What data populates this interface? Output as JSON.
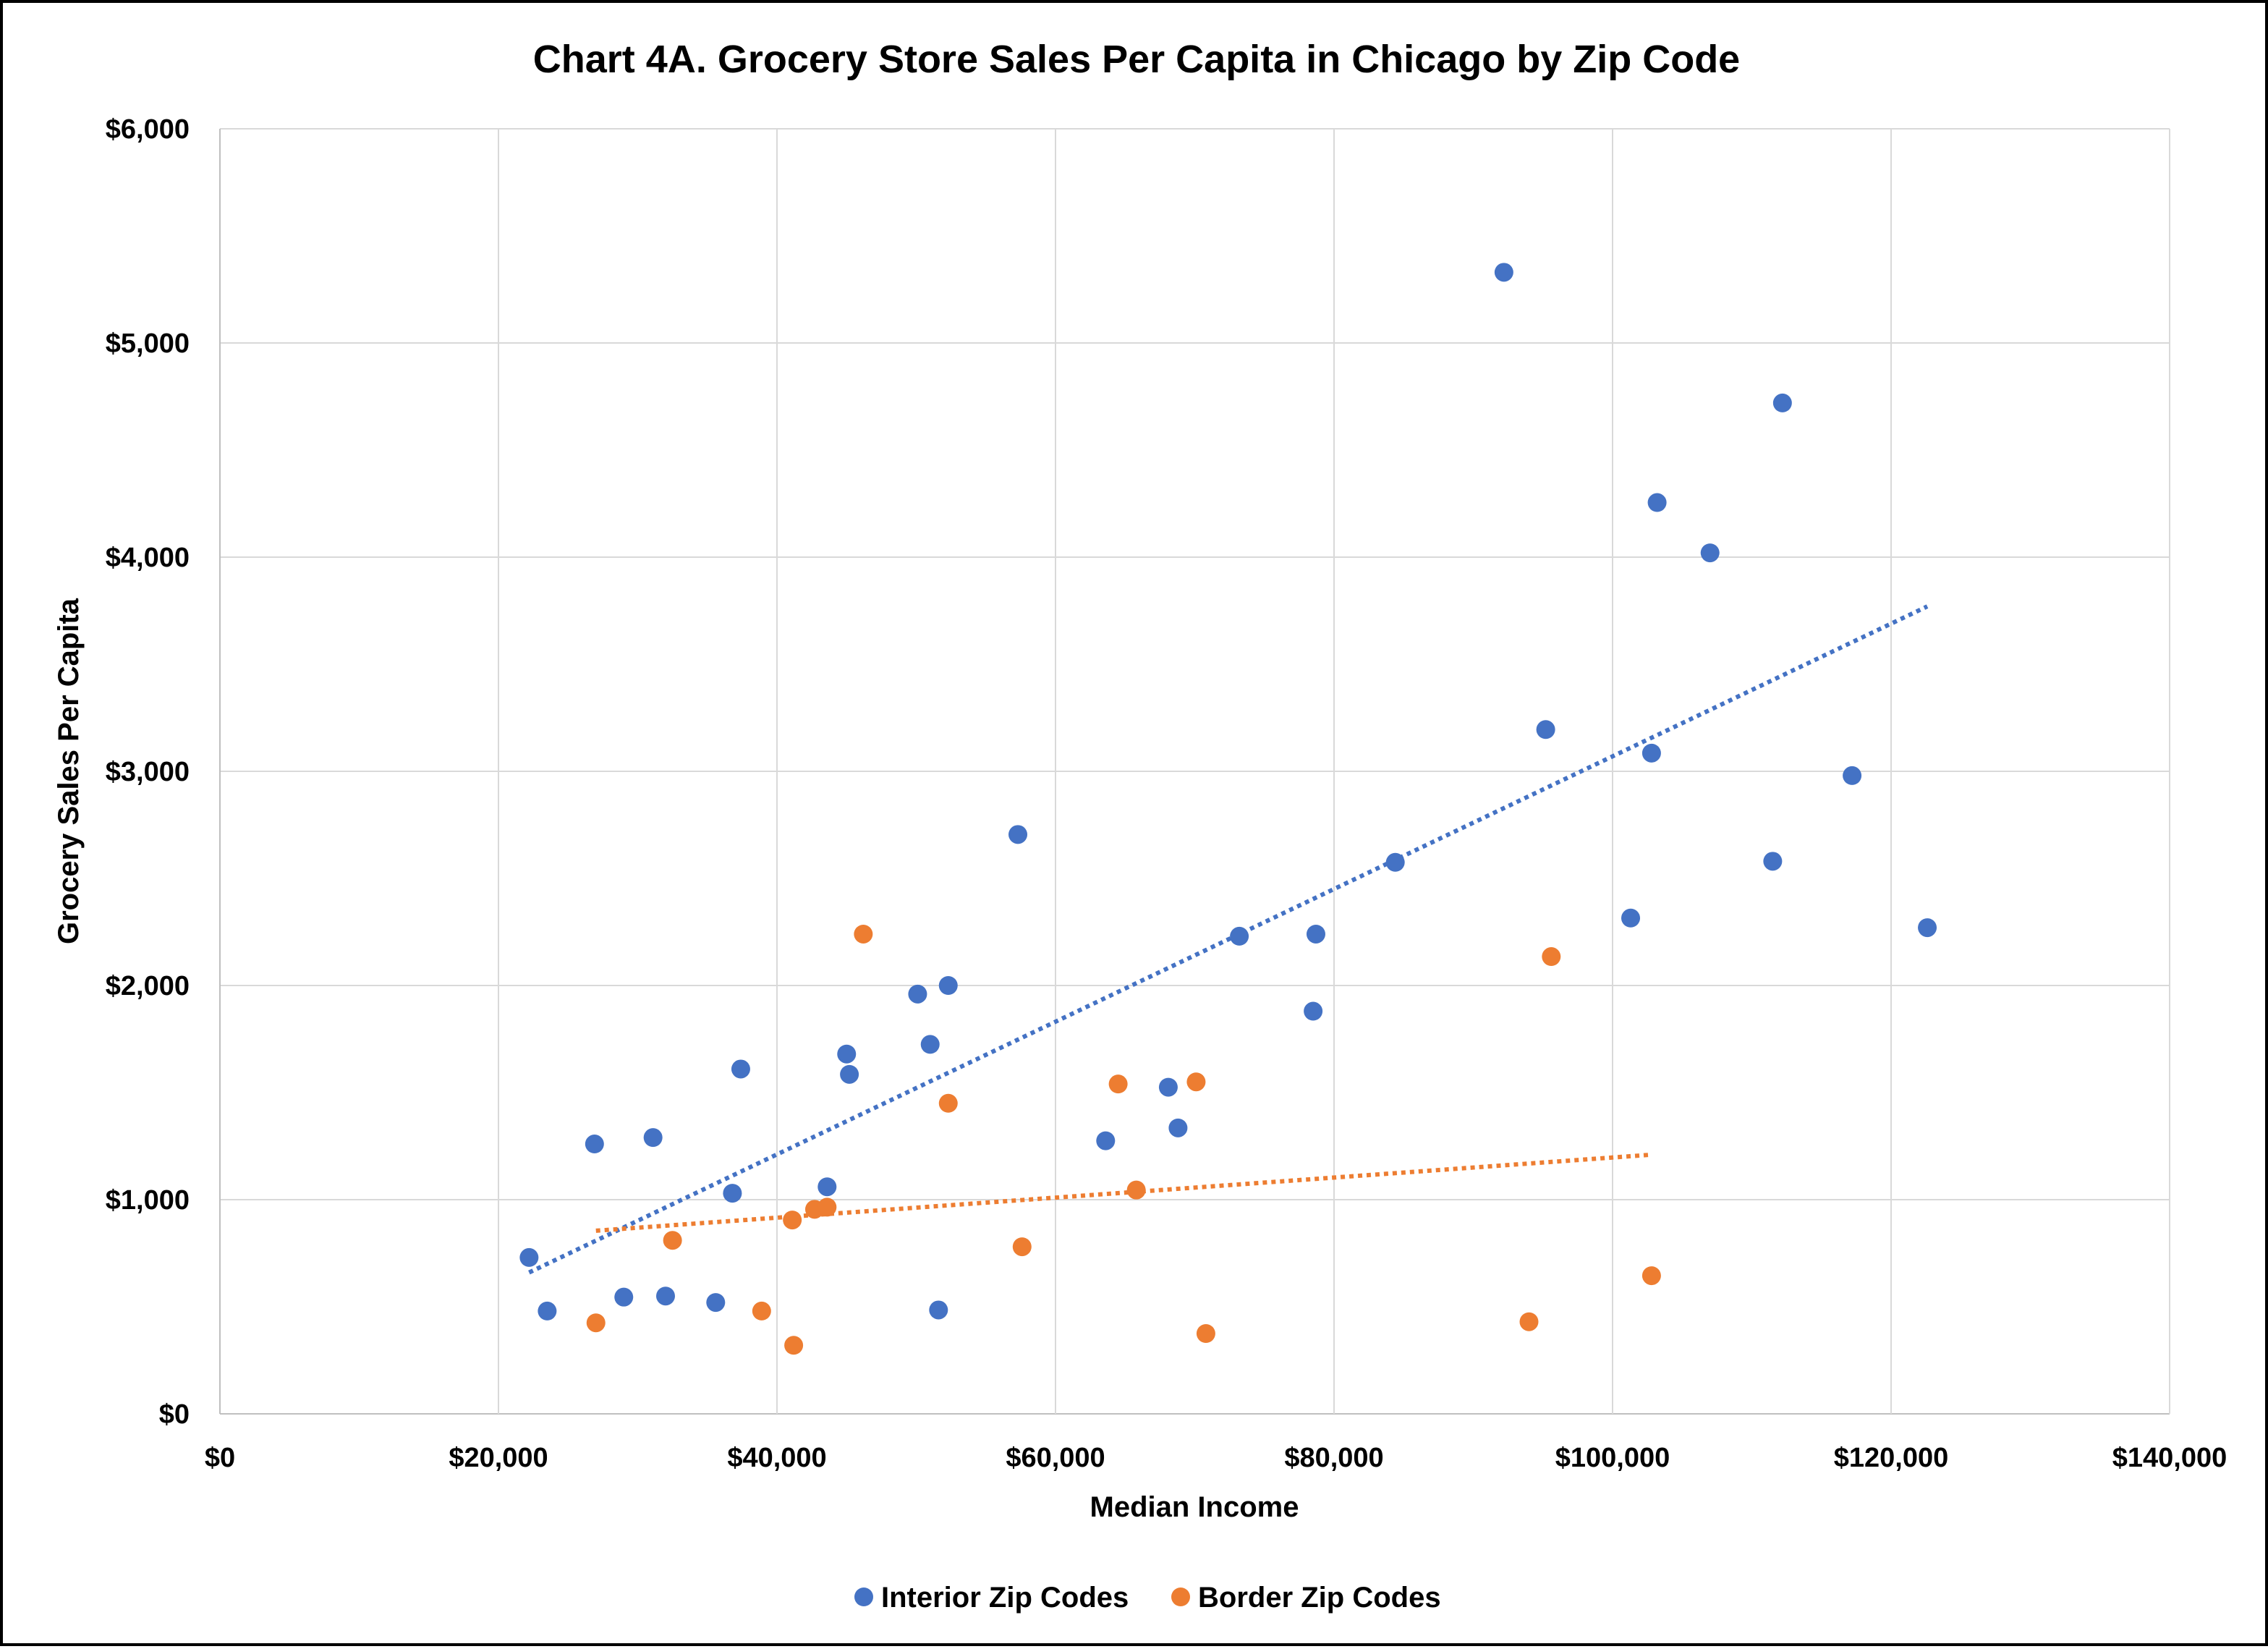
{
  "chart_data": {
    "type": "scatter",
    "title": "Chart 4A. Grocery Store Sales Per Capita in Chicago by Zip Code",
    "xlabel": "Median Income",
    "ylabel": "Grocery Sales Per Capita",
    "xlim": [
      0,
      140000
    ],
    "ylim": [
      0,
      6000
    ],
    "x_ticks": [
      0,
      20000,
      40000,
      60000,
      80000,
      100000,
      120000,
      140000
    ],
    "y_ticks": [
      0,
      1000,
      2000,
      3000,
      4000,
      5000,
      6000
    ],
    "x_tick_labels": [
      "$0",
      "$20,000",
      "$40,000",
      "$60,000",
      "$80,000",
      "$100,000",
      "$120,000",
      "$140,000"
    ],
    "y_tick_labels": [
      "$0",
      "$1,000",
      "$2,000",
      "$3,000",
      "$4,000",
      "$5,000",
      "$6,000"
    ],
    "grid": true,
    "legend_position": "bottom",
    "series": [
      {
        "name": "Interior Zip Codes",
        "color": "#4472C4",
        "points": [
          [
            22200,
            730
          ],
          [
            23500,
            480
          ],
          [
            26900,
            1260
          ],
          [
            29000,
            545
          ],
          [
            31100,
            1290
          ],
          [
            32000,
            550
          ],
          [
            35600,
            520
          ],
          [
            36800,
            1030
          ],
          [
            37400,
            1610
          ],
          [
            43600,
            1060
          ],
          [
            45000,
            1680
          ],
          [
            45200,
            1585
          ],
          [
            50100,
            1960
          ],
          [
            51000,
            1725
          ],
          [
            51600,
            485
          ],
          [
            52300,
            2000
          ],
          [
            57300,
            2705
          ],
          [
            63600,
            1275
          ],
          [
            68100,
            1525
          ],
          [
            68800,
            1335
          ],
          [
            73200,
            2230
          ],
          [
            78500,
            1880
          ],
          [
            78700,
            2240
          ],
          [
            84400,
            2575
          ],
          [
            92200,
            5330
          ],
          [
            95200,
            3195
          ],
          [
            101300,
            2315
          ],
          [
            102800,
            3085
          ],
          [
            103200,
            4255
          ],
          [
            107000,
            4020
          ],
          [
            111500,
            2580
          ],
          [
            112200,
            4720
          ],
          [
            117200,
            2980
          ],
          [
            122600,
            2270
          ]
        ],
        "trendline": {
          "style": "dotted",
          "x": [
            22200,
            122600
          ],
          "y": [
            660,
            3770
          ]
        }
      },
      {
        "name": "Border Zip Codes",
        "color": "#ED7D31",
        "points": [
          [
            27000,
            425
          ],
          [
            32500,
            810
          ],
          [
            38900,
            480
          ],
          [
            41100,
            905
          ],
          [
            41200,
            320
          ],
          [
            42700,
            955
          ],
          [
            43600,
            965
          ],
          [
            46200,
            2240
          ],
          [
            52300,
            1450
          ],
          [
            57600,
            780
          ],
          [
            64500,
            1540
          ],
          [
            65800,
            1045
          ],
          [
            70100,
            1550
          ],
          [
            70800,
            375
          ],
          [
            94000,
            430
          ],
          [
            95600,
            2135
          ],
          [
            102800,
            645
          ]
        ],
        "trendline": {
          "style": "dotted",
          "x": [
            27000,
            102800
          ],
          "y": [
            855,
            1210
          ]
        }
      }
    ]
  }
}
